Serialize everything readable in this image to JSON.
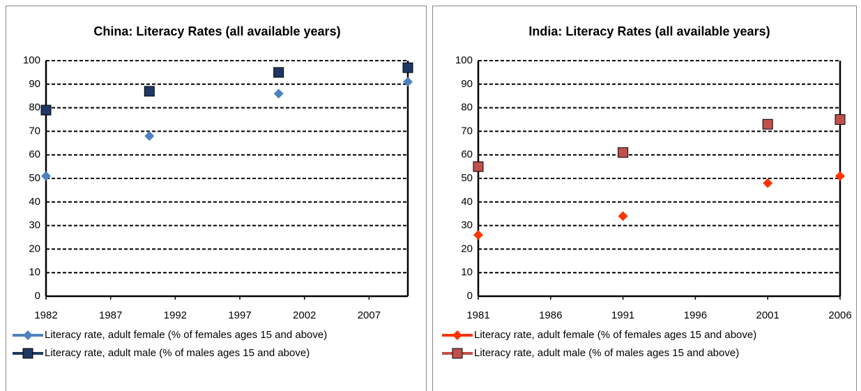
{
  "chart_data": [
    {
      "type": "scatter",
      "title": "China: Literacy Rates (all available years)",
      "x": [
        1982,
        1990,
        2000,
        2010
      ],
      "series": [
        {
          "name": "Literacy rate, adult female (% of females ages 15 and above)",
          "color": "#4f81bd",
          "marker": "diamond",
          "values": [
            51,
            68,
            86,
            91
          ]
        },
        {
          "name": "Literacy rate, adult male (% of males ages 15 and above)",
          "color": "#1f3864",
          "marker": "square",
          "values": [
            79,
            87,
            95,
            97
          ]
        }
      ],
      "xlim": [
        1982,
        2010
      ],
      "xticks": [
        1982,
        1987,
        1992,
        1997,
        2002,
        2007
      ],
      "ylim": [
        0,
        100
      ],
      "yticks": [
        0,
        10,
        20,
        30,
        40,
        50,
        60,
        70,
        80,
        90,
        100
      ],
      "grid": true,
      "legend": "bottom"
    },
    {
      "type": "scatter",
      "title": "India: Literacy Rates (all available years)",
      "x": [
        1981,
        1991,
        2001,
        2006
      ],
      "series": [
        {
          "name": "Literacy rate, adult female (% of females ages 15 and above)",
          "color": "#ff3300",
          "marker": "diamond",
          "values": [
            26,
            34,
            48,
            51
          ]
        },
        {
          "name": "Literacy rate, adult male (% of males ages 15 and above)",
          "color": "#c0504d",
          "marker": "square",
          "values": [
            55,
            61,
            73,
            75
          ]
        }
      ],
      "xlim": [
        1981,
        2006
      ],
      "xticks": [
        1981,
        1986,
        1991,
        1996,
        2001,
        2006
      ],
      "ylim": [
        0,
        100
      ],
      "yticks": [
        0,
        10,
        20,
        30,
        40,
        50,
        60,
        70,
        80,
        90,
        100
      ],
      "grid": true,
      "legend": "bottom"
    }
  ]
}
